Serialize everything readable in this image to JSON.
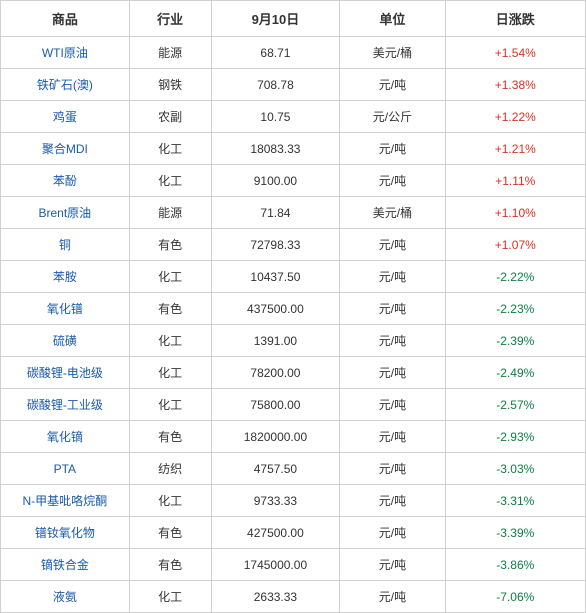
{
  "table": {
    "columns": [
      {
        "key": "commodity",
        "label": "商品",
        "width": "22%"
      },
      {
        "key": "industry",
        "label": "行业",
        "width": "14%"
      },
      {
        "key": "price",
        "label": "9月10日",
        "width": "22%"
      },
      {
        "key": "unit",
        "label": "单位",
        "width": "18%"
      },
      {
        "key": "change",
        "label": "日涨跌",
        "width": "24%"
      }
    ],
    "rows": [
      {
        "commodity": "WTI原油",
        "industry": "能源",
        "price": "68.71",
        "unit": "美元/桶",
        "change": "+1.54%",
        "direction": "up"
      },
      {
        "commodity": "铁矿石(澳)",
        "industry": "钢铁",
        "price": "708.78",
        "unit": "元/吨",
        "change": "+1.38%",
        "direction": "up"
      },
      {
        "commodity": "鸡蛋",
        "industry": "农副",
        "price": "10.75",
        "unit": "元/公斤",
        "change": "+1.22%",
        "direction": "up"
      },
      {
        "commodity": "聚合MDI",
        "industry": "化工",
        "price": "18083.33",
        "unit": "元/吨",
        "change": "+1.21%",
        "direction": "up"
      },
      {
        "commodity": "苯酚",
        "industry": "化工",
        "price": "9100.00",
        "unit": "元/吨",
        "change": "+1.11%",
        "direction": "up"
      },
      {
        "commodity": "Brent原油",
        "industry": "能源",
        "price": "71.84",
        "unit": "美元/桶",
        "change": "+1.10%",
        "direction": "up"
      },
      {
        "commodity": "铜",
        "industry": "有色",
        "price": "72798.33",
        "unit": "元/吨",
        "change": "+1.07%",
        "direction": "up"
      },
      {
        "commodity": "苯胺",
        "industry": "化工",
        "price": "10437.50",
        "unit": "元/吨",
        "change": "-2.22%",
        "direction": "down"
      },
      {
        "commodity": "氧化镨",
        "industry": "有色",
        "price": "437500.00",
        "unit": "元/吨",
        "change": "-2.23%",
        "direction": "down"
      },
      {
        "commodity": "硫磺",
        "industry": "化工",
        "price": "1391.00",
        "unit": "元/吨",
        "change": "-2.39%",
        "direction": "down"
      },
      {
        "commodity": "碳酸锂-电池级",
        "industry": "化工",
        "price": "78200.00",
        "unit": "元/吨",
        "change": "-2.49%",
        "direction": "down"
      },
      {
        "commodity": "碳酸锂-工业级",
        "industry": "化工",
        "price": "75800.00",
        "unit": "元/吨",
        "change": "-2.57%",
        "direction": "down"
      },
      {
        "commodity": "氧化镝",
        "industry": "有色",
        "price": "1820000.00",
        "unit": "元/吨",
        "change": "-2.93%",
        "direction": "down"
      },
      {
        "commodity": "PTA",
        "industry": "纺织",
        "price": "4757.50",
        "unit": "元/吨",
        "change": "-3.03%",
        "direction": "down"
      },
      {
        "commodity": "N-甲基吡咯烷酮",
        "industry": "化工",
        "price": "9733.33",
        "unit": "元/吨",
        "change": "-3.31%",
        "direction": "down"
      },
      {
        "commodity": "镨钕氧化物",
        "industry": "有色",
        "price": "427500.00",
        "unit": "元/吨",
        "change": "-3.39%",
        "direction": "down"
      },
      {
        "commodity": "镝铁合金",
        "industry": "有色",
        "price": "1745000.00",
        "unit": "元/吨",
        "change": "-3.86%",
        "direction": "down"
      },
      {
        "commodity": "液氨",
        "industry": "化工",
        "price": "2633.33",
        "unit": "元/吨",
        "change": "-7.06%",
        "direction": "down"
      }
    ],
    "colors": {
      "commodity_link": "#1a5aa8",
      "change_up": "#d93025",
      "change_down": "#0a8043",
      "border": "#d0d0d0",
      "header_text": "#333333",
      "body_text": "#333333",
      "background": "#ffffff"
    },
    "fonts": {
      "header_size_pt": 13,
      "body_size_pt": 12,
      "header_weight": "bold",
      "family": "Microsoft YaHei"
    }
  }
}
